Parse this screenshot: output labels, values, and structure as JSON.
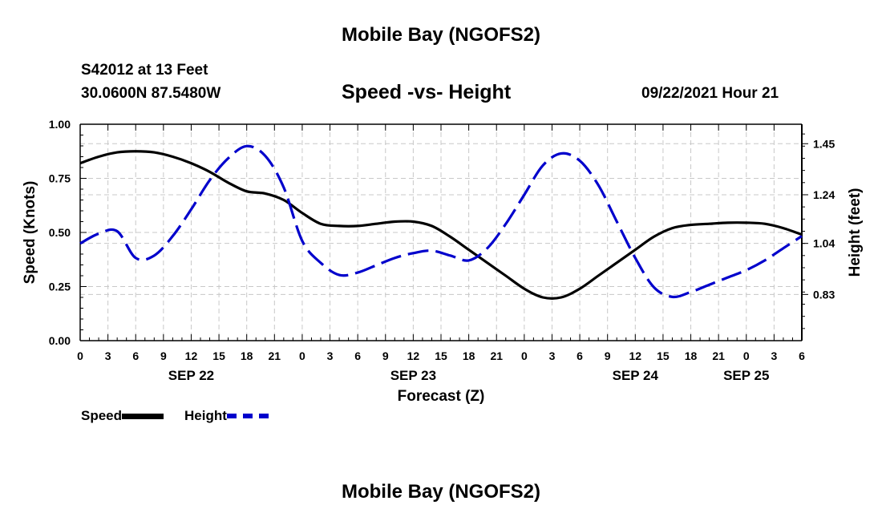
{
  "header": {
    "title": "Mobile Bay (NGOFS2)",
    "station": "S42012 at 13 Feet",
    "coords": "30.0600N  87.5480W",
    "subtitle": "Speed -vs- Height",
    "timestamp": "09/22/2021 Hour 21",
    "footer_title": "Mobile Bay (NGOFS2)"
  },
  "legend": {
    "speed_label": "Speed",
    "height_label": "Height"
  },
  "chart_data": {
    "type": "line",
    "title": "Speed -vs- Height",
    "xlabel": "Forecast (Z)",
    "ylabel": "Speed (Knots)",
    "y2label": "Height (feet)",
    "xlim": [
      0,
      78
    ],
    "ylim": [
      0,
      1.0
    ],
    "y2lim": [
      0.64,
      1.53
    ],
    "yticks": [
      0.0,
      0.25,
      0.5,
      0.75,
      1.0
    ],
    "ytick_labels": [
      "0.00",
      "0.25",
      "0.50",
      "0.75",
      "1.00"
    ],
    "y2ticks": [
      0.83,
      1.04,
      1.24,
      1.45
    ],
    "y2tick_labels": [
      "0.83",
      "1.04",
      "1.24",
      "1.45"
    ],
    "xtick_labels": [
      "0",
      "3",
      "6",
      "9",
      "12",
      "15",
      "18",
      "21",
      "0",
      "3",
      "6",
      "9",
      "12",
      "15",
      "18",
      "21",
      "0",
      "3",
      "6",
      "9",
      "12",
      "15",
      "18",
      "21",
      "0",
      "3",
      "6"
    ],
    "day_labels": [
      {
        "label": "SEP 22",
        "x": 12
      },
      {
        "label": "SEP 23",
        "x": 36
      },
      {
        "label": "SEP 24",
        "x": 60
      },
      {
        "label": "SEP 25",
        "x": 72
      }
    ],
    "grid": true,
    "legend_position": "bottom-left",
    "series": [
      {
        "name": "Speed",
        "axis": "left",
        "color": "#000000",
        "dash": "solid",
        "x": [
          0,
          2,
          4,
          6,
          8,
          10,
          12,
          14,
          16,
          18,
          20,
          22,
          24,
          26,
          28,
          30,
          32,
          34,
          36,
          38,
          40,
          42,
          44,
          46,
          48,
          50,
          52,
          54,
          56,
          58,
          60,
          62,
          64,
          66,
          68,
          70,
          72,
          74,
          76,
          78
        ],
        "y": [
          0.82,
          0.85,
          0.87,
          0.875,
          0.87,
          0.85,
          0.82,
          0.78,
          0.73,
          0.69,
          0.68,
          0.65,
          0.59,
          0.54,
          0.53,
          0.53,
          0.54,
          0.55,
          0.55,
          0.53,
          0.48,
          0.42,
          0.36,
          0.3,
          0.24,
          0.2,
          0.2,
          0.24,
          0.3,
          0.36,
          0.42,
          0.48,
          0.52,
          0.535,
          0.54,
          0.545,
          0.545,
          0.54,
          0.52,
          0.49
        ]
      },
      {
        "name": "Height",
        "axis": "right",
        "color": "#0000cc",
        "dash": "dashed",
        "x": [
          0,
          2,
          4,
          6,
          8,
          10,
          12,
          14,
          16,
          18,
          20,
          22,
          24,
          26,
          28,
          30,
          32,
          34,
          36,
          38,
          40,
          42,
          44,
          46,
          48,
          50,
          52,
          54,
          56,
          58,
          60,
          62,
          64,
          66,
          68,
          70,
          72,
          74,
          76,
          78
        ],
        "y": [
          1.04,
          1.08,
          1.09,
          0.98,
          0.99,
          1.07,
          1.18,
          1.3,
          1.39,
          1.44,
          1.4,
          1.27,
          1.05,
          0.96,
          0.91,
          0.92,
          0.95,
          0.98,
          1.0,
          1.01,
          0.99,
          0.97,
          1.02,
          1.12,
          1.24,
          1.36,
          1.41,
          1.38,
          1.28,
          1.13,
          0.98,
          0.86,
          0.82,
          0.84,
          0.87,
          0.9,
          0.93,
          0.97,
          1.02,
          1.07
        ]
      }
    ]
  }
}
